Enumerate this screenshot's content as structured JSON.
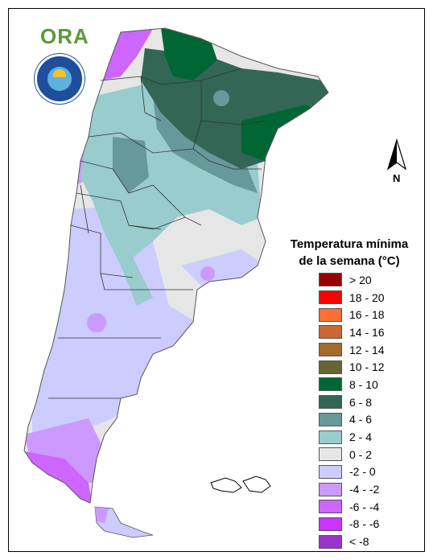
{
  "logo": {
    "text": "ORA",
    "seal_name": "seal-smn-icon"
  },
  "north_arrow": {
    "label": "N"
  },
  "legend": {
    "title_line1": "Temperatura mínima",
    "title_line2": "de la semana (°C)",
    "items": [
      {
        "label": "> 20",
        "color": "#990000"
      },
      {
        "label": "18 - 20",
        "color": "#ff0000"
      },
      {
        "label": "16 - 18",
        "color": "#ff6f33"
      },
      {
        "label": "14 - 16",
        "color": "#cc6633"
      },
      {
        "label": "12 - 14",
        "color": "#a36a2c"
      },
      {
        "label": "10 - 12",
        "color": "#666633"
      },
      {
        "label": "8 - 10",
        "color": "#006633"
      },
      {
        "label": "6 - 8",
        "color": "#336655"
      },
      {
        "label": "4 - 6",
        "color": "#669999"
      },
      {
        "label": "2 - 4",
        "color": "#99cccc"
      },
      {
        "label": "0 - 2",
        "color": "#e6e6e6"
      },
      {
        "label": "-2 - 0",
        "color": "#ccccff"
      },
      {
        "label": "-4 - -2",
        "color": "#cc99ff"
      },
      {
        "label": "-6 - -4",
        "color": "#cc66ff"
      },
      {
        "label": "-8 - -6",
        "color": "#cc33ff"
      },
      {
        "label": "< -8",
        "color": "#9933cc"
      }
    ]
  }
}
